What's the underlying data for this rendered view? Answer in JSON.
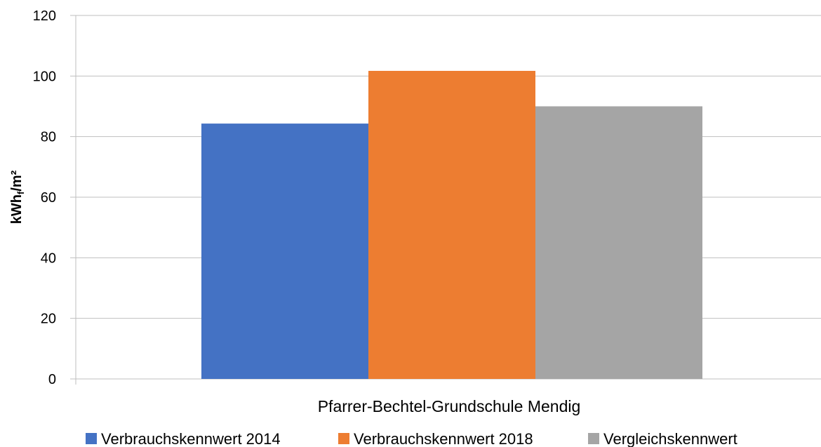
{
  "chart_data": {
    "type": "bar",
    "categories": [
      "Pfarrer-Bechtel-Grundschule Mendig"
    ],
    "series": [
      {
        "name": "Verbrauchskennwert 2014",
        "values": [
          84.3
        ],
        "color": "#4472C4"
      },
      {
        "name": "Verbrauchskennwert 2018",
        "values": [
          101.7
        ],
        "color": "#ED7D31"
      },
      {
        "name": "Vergleichskennwert",
        "values": [
          90
        ],
        "color": "#A5A5A5"
      }
    ],
    "ylabel": "kWh",
    "ylabel_subscript": "f",
    "ylabel_suffix": "/m²",
    "ylim": [
      0,
      120
    ],
    "yticks": [
      "0",
      "20",
      "40",
      "60",
      "80",
      "100",
      "120"
    ],
    "grid": true,
    "legend_position": "bottom"
  }
}
